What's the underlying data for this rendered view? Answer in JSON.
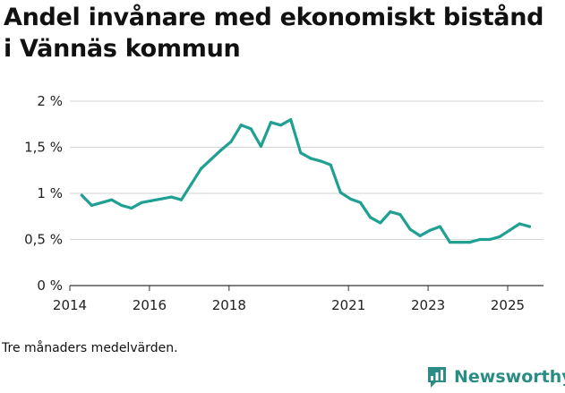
{
  "chart_data": {
    "type": "line",
    "title": "Andel invånare med ekonomiskt bistånd i Vännäs kommun",
    "xlabel": "",
    "ylabel": "",
    "ylim": [
      0,
      2
    ],
    "xlim": [
      2014,
      2025.9
    ],
    "y_ticks": [
      {
        "value": 0,
        "label": "0 %"
      },
      {
        "value": 0.5,
        "label": "0,5 %"
      },
      {
        "value": 1,
        "label": "1 %"
      },
      {
        "value": 1.5,
        "label": "1,5 %"
      },
      {
        "value": 2,
        "label": "2 %"
      }
    ],
    "x_ticks": [
      {
        "value": 2014,
        "label": "2014"
      },
      {
        "value": 2016,
        "label": "2016"
      },
      {
        "value": 2018,
        "label": "2018"
      },
      {
        "value": 2021,
        "label": "2021"
      },
      {
        "value": 2023,
        "label": "2023"
      },
      {
        "value": 2025,
        "label": "2025"
      }
    ],
    "grid": true,
    "series": [
      {
        "name": "Andel invånare med ekonomiskt bistånd",
        "color": "#1fa093",
        "x": [
          2014.3,
          2014.55,
          2014.8,
          2015.05,
          2015.3,
          2015.55,
          2015.8,
          2016.05,
          2016.3,
          2016.55,
          2016.8,
          2017.05,
          2017.3,
          2017.55,
          2017.8,
          2018.05,
          2018.3,
          2018.55,
          2018.8,
          2019.05,
          2019.3,
          2019.55,
          2019.8,
          2020.05,
          2020.3,
          2020.55,
          2020.8,
          2021.05,
          2021.3,
          2021.55,
          2021.8,
          2022.05,
          2022.3,
          2022.55,
          2022.8,
          2023.05,
          2023.3,
          2023.55,
          2023.8,
          2024.05,
          2024.3,
          2024.55,
          2024.8,
          2025.05,
          2025.3,
          2025.55
        ],
        "values": [
          0.98,
          0.87,
          0.9,
          0.93,
          0.87,
          0.84,
          0.9,
          0.92,
          0.94,
          0.96,
          0.93,
          1.1,
          1.27,
          1.37,
          1.47,
          1.56,
          1.74,
          1.7,
          1.51,
          1.77,
          1.74,
          1.8,
          1.44,
          1.38,
          1.35,
          1.31,
          1.01,
          0.94,
          0.9,
          0.74,
          0.68,
          0.8,
          0.77,
          0.61,
          0.54,
          0.6,
          0.64,
          0.47,
          0.47,
          0.47,
          0.5,
          0.5,
          0.53,
          0.6,
          0.67,
          0.64
        ]
      }
    ]
  },
  "footnote": "Tre månaders medelvärden.",
  "brand": {
    "name": "Newsworthy",
    "icon": "newsworthy-logo-icon",
    "color": "#2a8c84"
  }
}
